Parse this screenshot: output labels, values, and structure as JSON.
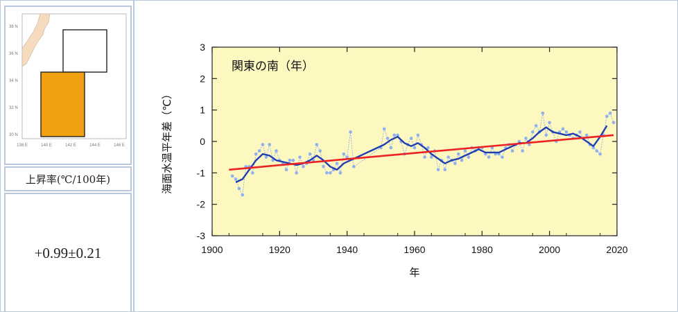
{
  "map": {
    "lat_labels": [
      "38 N",
      "36 N",
      "34 N",
      "32 N",
      "30 N"
    ],
    "lon_labels": [
      "138 E",
      "140 E",
      "142 E",
      "144 E",
      "146 E"
    ],
    "highlight_color": "#f0a010"
  },
  "rate": {
    "label": "上昇率(℃/100年)",
    "value": "+0.99±0.21"
  },
  "chart_data": {
    "type": "line",
    "title": "関東の南（年）",
    "xlabel": "年",
    "ylabel": "海面水温平年差（℃）",
    "xlim": [
      1900,
      2020
    ],
    "ylim": [
      -3,
      3
    ],
    "xticks": [
      1900,
      1920,
      1940,
      1960,
      1980,
      2000,
      2020
    ],
    "yticks": [
      -3,
      -2,
      -1,
      0,
      1,
      2,
      3
    ],
    "background_color": "#fdf7c0",
    "grid": false,
    "series": [
      {
        "role": "annual",
        "color": "#8fb0f0",
        "x": [
          1906,
          1907,
          1908,
          1909,
          1910,
          1911,
          1912,
          1913,
          1914,
          1915,
          1916,
          1917,
          1918,
          1919,
          1920,
          1921,
          1922,
          1923,
          1924,
          1925,
          1926,
          1927,
          1928,
          1929,
          1930,
          1931,
          1932,
          1933,
          1934,
          1935,
          1936,
          1937,
          1938,
          1939,
          1940,
          1941,
          1942,
          1950,
          1951,
          1952,
          1953,
          1954,
          1955,
          1956,
          1957,
          1958,
          1959,
          1960,
          1961,
          1962,
          1963,
          1964,
          1965,
          1966,
          1967,
          1968,
          1969,
          1970,
          1971,
          1972,
          1973,
          1974,
          1975,
          1976,
          1977,
          1978,
          1979,
          1980,
          1981,
          1982,
          1983,
          1984,
          1985,
          1986,
          1987,
          1988,
          1989,
          1990,
          1991,
          1992,
          1993,
          1994,
          1995,
          1996,
          1997,
          1998,
          1999,
          2000,
          2001,
          2002,
          2003,
          2004,
          2005,
          2006,
          2007,
          2008,
          2009,
          2010,
          2011,
          2012,
          2013,
          2014,
          2015,
          2016,
          2017,
          2018,
          2019
        ],
        "y": [
          -1.1,
          -1.2,
          -1.5,
          -1.7,
          -0.8,
          -0.8,
          -1.0,
          -0.4,
          -0.3,
          -0.1,
          -0.5,
          -0.1,
          -0.6,
          -0.3,
          -0.6,
          -0.7,
          -0.9,
          -0.6,
          -0.6,
          -1.0,
          -0.5,
          -0.8,
          -0.7,
          -0.4,
          -0.6,
          -0.1,
          -0.3,
          -0.8,
          -1.0,
          -1.0,
          -0.9,
          -0.7,
          -1.0,
          -0.4,
          -0.5,
          0.3,
          -0.8,
          -0.2,
          0.4,
          0.1,
          -0.2,
          0.2,
          0.2,
          0.0,
          -0.4,
          -0.1,
          0.1,
          -0.2,
          0.2,
          -0.1,
          -0.5,
          -0.2,
          -0.5,
          -0.3,
          -0.9,
          -0.6,
          -0.9,
          -0.5,
          -0.6,
          -0.7,
          -0.4,
          -0.6,
          -0.3,
          -0.5,
          -0.2,
          -0.3,
          -0.2,
          -0.2,
          -0.4,
          -0.5,
          -0.2,
          -0.4,
          -0.4,
          -0.5,
          -0.2,
          -0.1,
          -0.3,
          -0.1,
          0.0,
          -0.3,
          0.1,
          -0.1,
          0.3,
          0.5,
          0.3,
          0.9,
          0.2,
          0.6,
          0.3,
          0.0,
          0.3,
          0.4,
          0.3,
          0.2,
          0.1,
          0.2,
          0.3,
          0.1,
          0.2,
          -0.1,
          -0.2,
          -0.3,
          -0.4,
          0.2,
          0.8,
          0.9,
          0.6
        ]
      },
      {
        "role": "5-year running mean",
        "color": "#1f3fb0",
        "x": [
          1907,
          1909,
          1911,
          1913,
          1915,
          1917,
          1919,
          1921,
          1923,
          1925,
          1927,
          1929,
          1931,
          1933,
          1935,
          1937,
          1939,
          1951,
          1953,
          1955,
          1957,
          1959,
          1961,
          1963,
          1965,
          1967,
          1969,
          1971,
          1973,
          1975,
          1977,
          1979,
          1981,
          1983,
          1985,
          1987,
          1989,
          1991,
          1993,
          1995,
          1997,
          1999,
          2001,
          2003,
          2005,
          2007,
          2009,
          2011,
          2013,
          2015,
          2017
        ],
        "y": [
          -1.3,
          -1.2,
          -0.9,
          -0.6,
          -0.4,
          -0.45,
          -0.6,
          -0.65,
          -0.7,
          -0.75,
          -0.7,
          -0.6,
          -0.45,
          -0.6,
          -0.8,
          -0.9,
          -0.7,
          -0.1,
          0.05,
          0.15,
          -0.05,
          -0.15,
          -0.05,
          -0.2,
          -0.4,
          -0.55,
          -0.7,
          -0.6,
          -0.55,
          -0.45,
          -0.35,
          -0.25,
          -0.35,
          -0.35,
          -0.35,
          -0.25,
          -0.15,
          -0.05,
          -0.05,
          0.1,
          0.3,
          0.45,
          0.3,
          0.25,
          0.2,
          0.25,
          0.15,
          0.0,
          -0.15,
          0.15,
          0.5
        ]
      },
      {
        "role": "linear trend",
        "color": "#ee2222",
        "x": [
          1905,
          2019
        ],
        "y": [
          -0.9,
          0.2
        ]
      }
    ]
  }
}
